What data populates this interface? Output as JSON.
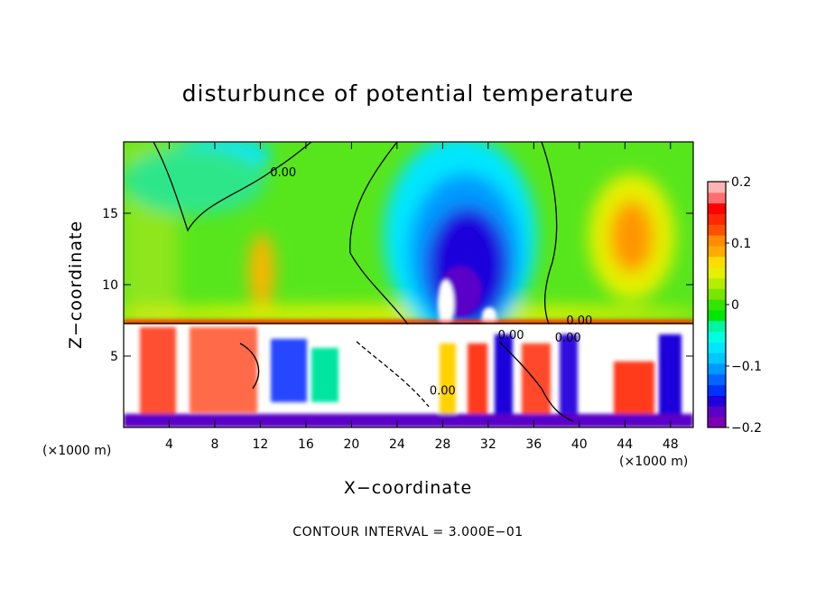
{
  "chart_data": {
    "type": "heatmap",
    "title": "disturbunce of potential temperature",
    "xlabel": "X−coordinate",
    "ylabel": "Z−coordinate",
    "x_unit_left": "(×1000 m)",
    "x_unit_right": "(×1000 m)",
    "xlim": [
      0,
      50
    ],
    "ylim": [
      0,
      20
    ],
    "xticks": [
      4,
      8,
      12,
      16,
      20,
      24,
      28,
      32,
      36,
      40,
      44,
      48
    ],
    "yticks": [
      5,
      10,
      15
    ],
    "footer": "CONTOUR INTERVAL = 3.000E−01",
    "colorbar": {
      "min": -0.2,
      "max": 0.2,
      "tick_values": [
        0.2,
        0.1,
        0,
        -0.1,
        -0.2
      ],
      "tick_labels": [
        "0.2",
        "0.1",
        "0",
        "−0.1",
        "−0.2"
      ],
      "colors": [
        "#7d00b4",
        "#5a00c8",
        "#1f00dc",
        "#0032ff",
        "#0066ff",
        "#0099ff",
        "#00c8ff",
        "#00e6ff",
        "#00ffe0",
        "#00f5a0",
        "#00e600",
        "#32e600",
        "#78e600",
        "#b4ee00",
        "#e6f000",
        "#ffdc00",
        "#ffaa00",
        "#ff8c00",
        "#ff5000",
        "#ff2800",
        "#ff0000",
        "#ff6e6e",
        "#ffb4b4"
      ]
    },
    "contour_labels": [
      "0.00",
      "0.00",
      "0.00",
      "0.00",
      "0.00"
    ],
    "features": [
      {
        "kind": "cold_core",
        "x": 29,
        "z": 12,
        "value": -0.2
      },
      {
        "kind": "warm_core",
        "x": 43.5,
        "z": 12.5,
        "value": 0.12
      },
      {
        "kind": "inversion_layer",
        "z": 7.2
      }
    ]
  }
}
